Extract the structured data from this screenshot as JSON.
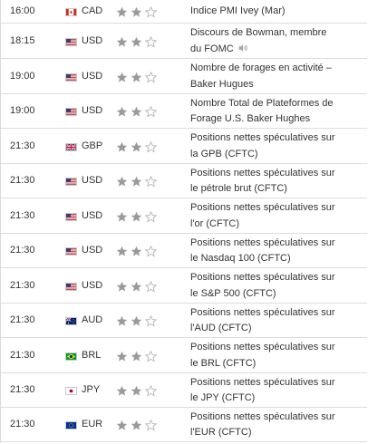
{
  "calendar": {
    "rows": [
      {
        "time": "16:00",
        "flag_icon": "canada-flag-icon",
        "currency": "CAD",
        "importance": 2,
        "event_lines": [
          "Indice PMI Ivey (Mar)"
        ],
        "speaker": false
      },
      {
        "time": "18:15",
        "flag_icon": "usa-flag-icon",
        "currency": "USD",
        "importance": 2,
        "event_lines": [
          "Discours de Bowman, membre",
          "du FOMC"
        ],
        "speaker": true
      },
      {
        "time": "19:00",
        "flag_icon": "usa-flag-icon",
        "currency": "USD",
        "importance": 2,
        "event_lines": [
          "Nombre de forages en activité –",
          "Baker Hugues"
        ],
        "speaker": false
      },
      {
        "time": "19:00",
        "flag_icon": "usa-flag-icon",
        "currency": "USD",
        "importance": 2,
        "event_lines": [
          "Nombre Total de Plateformes de",
          "Forage U.S. Baker Hughes"
        ],
        "speaker": false
      },
      {
        "time": "21:30",
        "flag_icon": "uk-flag-icon",
        "currency": "GBP",
        "importance": 2,
        "event_lines": [
          "Positions nettes spéculatives sur",
          "la GPB (CFTC)"
        ],
        "speaker": false
      },
      {
        "time": "21:30",
        "flag_icon": "usa-flag-icon",
        "currency": "USD",
        "importance": 2,
        "event_lines": [
          "Positions nettes spéculatives sur",
          "le pétrole brut (CFTC)"
        ],
        "speaker": false
      },
      {
        "time": "21:30",
        "flag_icon": "usa-flag-icon",
        "currency": "USD",
        "importance": 2,
        "event_lines": [
          "Positions nettes spéculatives sur",
          "l'or (CFTC)"
        ],
        "speaker": false
      },
      {
        "time": "21:30",
        "flag_icon": "usa-flag-icon",
        "currency": "USD",
        "importance": 2,
        "event_lines": [
          "Positions nettes spéculatives sur",
          "le Nasdaq 100 (CFTC)"
        ],
        "speaker": false
      },
      {
        "time": "21:30",
        "flag_icon": "usa-flag-icon",
        "currency": "USD",
        "importance": 2,
        "event_lines": [
          "Positions nettes spéculatives sur",
          "le S&P 500 (CFTC)"
        ],
        "speaker": false
      },
      {
        "time": "21:30",
        "flag_icon": "australia-flag-icon",
        "currency": "AUD",
        "importance": 2,
        "event_lines": [
          "Positions nettes spéculatives sur",
          "l'AUD (CFTC)"
        ],
        "speaker": false
      },
      {
        "time": "21:30",
        "flag_icon": "brazil-flag-icon",
        "currency": "BRL",
        "importance": 2,
        "event_lines": [
          "Positions nettes spéculatives sur",
          "le BRL (CFTC)"
        ],
        "speaker": false
      },
      {
        "time": "21:30",
        "flag_icon": "japan-flag-icon",
        "currency": "JPY",
        "importance": 2,
        "event_lines": [
          "Positions nettes spéculatives sur",
          "le JPY (CFTC)"
        ],
        "speaker": false
      },
      {
        "time": "21:30",
        "flag_icon": "eu-flag-icon",
        "currency": "EUR",
        "importance": 2,
        "event_lines": [
          "Positions nettes spéculatives sur",
          "l'EUR (CFTC)"
        ],
        "speaker": false
      }
    ],
    "importance_max": 3,
    "colors": {
      "star_filled": "#9a9a9a",
      "star_empty_stroke": "#b5b5b5",
      "row_border": "#dcdcdc"
    }
  }
}
